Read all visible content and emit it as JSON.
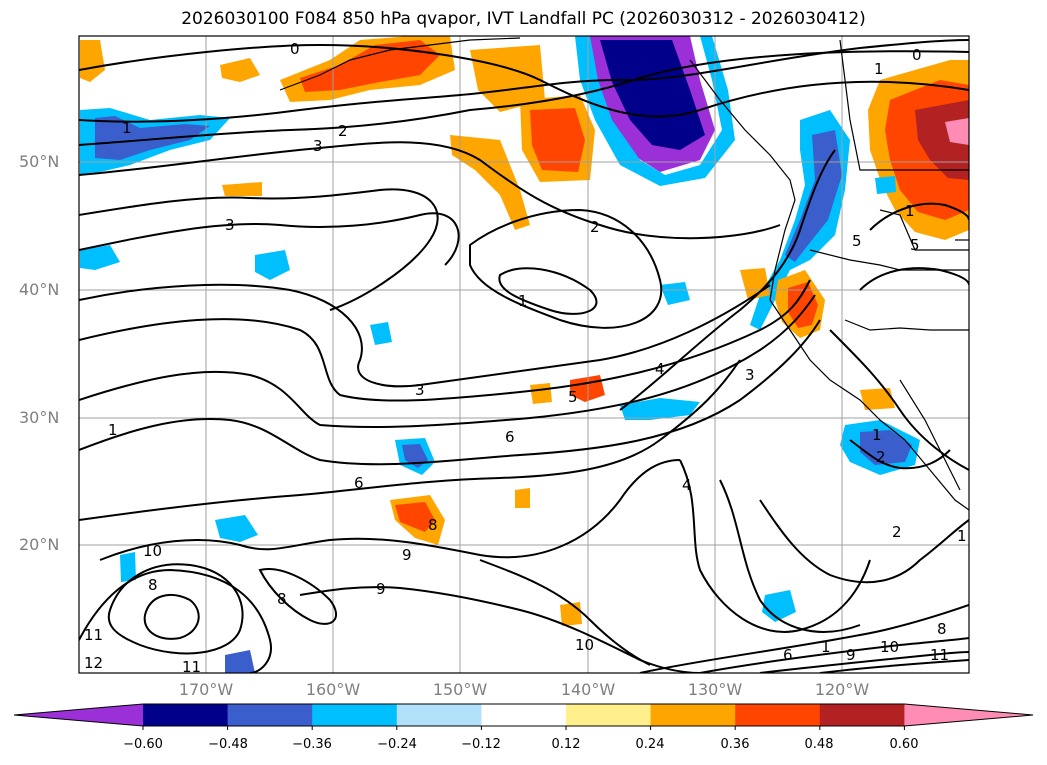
{
  "title": "2026030100 F084 850 hPa qvapor, IVT Landfall PC (2026030312 - 2026030412)",
  "map": {
    "lat_labels": [
      "50°N",
      "40°N",
      "30°N",
      "20°N"
    ],
    "lon_labels": [
      "170°W",
      "160°W",
      "150°W",
      "140°W",
      "130°W",
      "120°W"
    ],
    "contour_labels": [
      "0",
      "0",
      "1",
      "1",
      "2",
      "3",
      "3",
      "2",
      "1",
      "4",
      "3",
      "5",
      "6",
      "6",
      "3",
      "8",
      "9",
      "9",
      "10",
      "8",
      "8",
      "10",
      "11",
      "12",
      "11",
      "6",
      "1",
      "9",
      "10",
      "8",
      "11",
      "4",
      "2",
      "1",
      "1",
      "5",
      "5",
      "1",
      "2",
      "1"
    ]
  },
  "colorbar": {
    "ticks": [
      "−0.60",
      "−0.48",
      "−0.36",
      "−0.24",
      "−0.12",
      "0.12",
      "0.24",
      "0.36",
      "0.48",
      "0.60"
    ],
    "colors": [
      "#9b30d9",
      "#00008b",
      "#3a5fcd",
      "#00bfff",
      "#b0e0fa",
      "#ffffff",
      "#fff08c",
      "#ffa500",
      "#ff4500",
      "#b22222",
      "#ff8cb4"
    ]
  }
}
